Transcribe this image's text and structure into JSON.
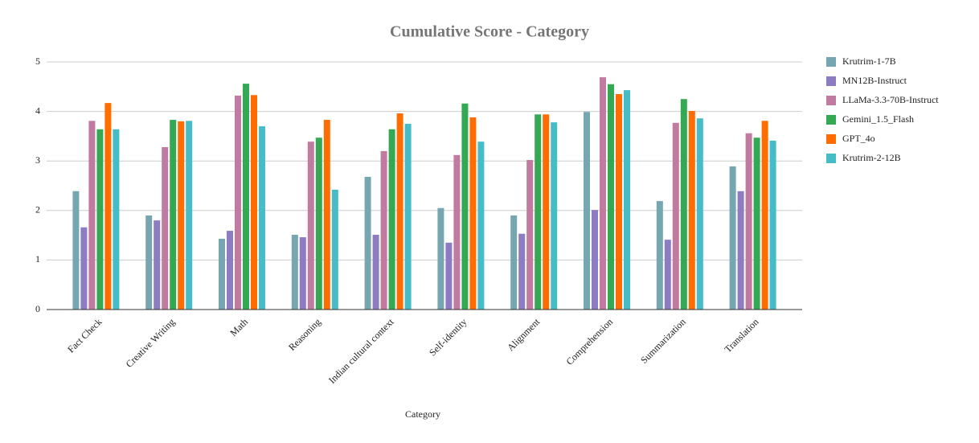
{
  "chart_data": {
    "type": "bar",
    "title": "Cumulative Score - Category",
    "x_label": "Category",
    "categories": [
      "Fact Check",
      "Creative Writing",
      "Math",
      "Reasoning",
      "Indian cultural context",
      "Self-identity",
      "Alignment",
      "Comprehension",
      "Summarization",
      "Translation"
    ],
    "series": [
      {
        "name": "Krutrim-1-7B",
        "color": "#76a7b0",
        "values": [
          2.39,
          1.9,
          1.43,
          1.51,
          2.68,
          2.05,
          1.9,
          3.99,
          2.19,
          2.89
        ]
      },
      {
        "name": "MN12B-Instruct",
        "color": "#8e7cc3",
        "values": [
          1.66,
          1.8,
          1.59,
          1.46,
          1.51,
          1.35,
          1.53,
          2.01,
          1.41,
          2.39
        ]
      },
      {
        "name": "LLaMa-3.3-70B-Instruct",
        "color": "#c27ba0",
        "values": [
          3.81,
          3.28,
          4.32,
          3.39,
          3.2,
          3.12,
          3.02,
          4.69,
          3.77,
          3.56
        ]
      },
      {
        "name": "Gemini_1.5_Flash",
        "color": "#34a853",
        "values": [
          3.64,
          3.83,
          4.56,
          3.47,
          3.64,
          4.16,
          3.94,
          4.55,
          4.25,
          3.47
        ]
      },
      {
        "name": "GPT_4o",
        "color": "#ff6d01",
        "values": [
          4.17,
          3.8,
          4.33,
          3.83,
          3.96,
          3.88,
          3.94,
          4.35,
          4.01,
          3.81
        ]
      },
      {
        "name": "Krutrim-2-12B",
        "color": "#46bdc6",
        "values": [
          3.64,
          3.81,
          3.7,
          2.42,
          3.75,
          3.39,
          3.78,
          4.43,
          3.86,
          3.41
        ]
      }
    ],
    "ylim": [
      0,
      5
    ],
    "yticks": [
      0,
      1,
      2,
      3,
      4,
      5
    ],
    "grid": true,
    "legend": "right"
  }
}
